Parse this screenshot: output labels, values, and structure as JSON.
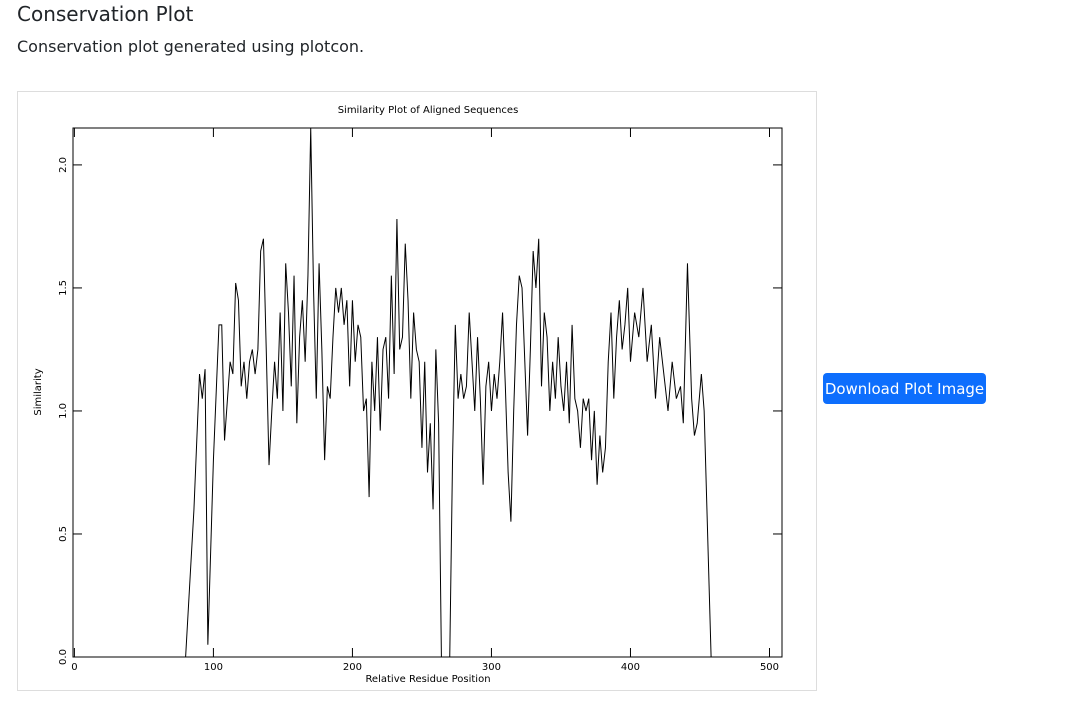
{
  "header": {
    "title": "Conservation Plot",
    "description": "Conservation plot generated using plotcon."
  },
  "button": {
    "label": "Download Plot Image"
  },
  "chart_data": {
    "type": "line",
    "title": "Similarity Plot of Aligned Sequences",
    "x_label": "Relative Residue Position",
    "y_label": "Similarity",
    "color": "#000000",
    "xlim": [
      -1,
      509
    ],
    "ylim": [
      0,
      2.15
    ],
    "xticks": [
      0,
      100,
      200,
      300,
      400,
      500
    ],
    "yticks": [
      {
        "value": 0,
        "label": "0.0"
      },
      0.5,
      {
        "value": 1,
        "label": "1.0"
      },
      1.5,
      {
        "value": 2,
        "label": "2.0"
      }
    ],
    "x": [
      0,
      78,
      80,
      86,
      90,
      92,
      94,
      96,
      100,
      104,
      106,
      108,
      112,
      114,
      116,
      118,
      120,
      122,
      124,
      126,
      128,
      130,
      132,
      134,
      136,
      138,
      140,
      142,
      144,
      146,
      148,
      150,
      152,
      154,
      156,
      158,
      160,
      162,
      164,
      166,
      168,
      170,
      172,
      174,
      176,
      178,
      180,
      182,
      184,
      186,
      188,
      190,
      192,
      194,
      196,
      198,
      200,
      202,
      204,
      206,
      208,
      210,
      212,
      214,
      216,
      218,
      220,
      222,
      224,
      226,
      228,
      230,
      232,
      234,
      236,
      238,
      240,
      242,
      244,
      246,
      248,
      250,
      252,
      254,
      256,
      258,
      260,
      262,
      264,
      270,
      272,
      274,
      276,
      278,
      280,
      282,
      284,
      286,
      288,
      290,
      292,
      294,
      296,
      298,
      300,
      302,
      304,
      306,
      308,
      310,
      312,
      314,
      316,
      318,
      320,
      322,
      324,
      326,
      328,
      330,
      332,
      334,
      336,
      338,
      340,
      342,
      344,
      346,
      348,
      350,
      352,
      354,
      356,
      358,
      360,
      362,
      364,
      366,
      368,
      370,
      372,
      374,
      376,
      378,
      380,
      382,
      384,
      386,
      388,
      390,
      392,
      394,
      396,
      398,
      400,
      403,
      406,
      409,
      412,
      415,
      418,
      421,
      424,
      427,
      430,
      433,
      436,
      438,
      441,
      444,
      446,
      448,
      451,
      453,
      458,
      460
    ],
    "values": [
      0,
      0,
      0,
      0.6,
      1.15,
      1.05,
      1.17,
      0.05,
      0.8,
      1.35,
      1.35,
      0.88,
      1.2,
      1.15,
      1.52,
      1.45,
      1.1,
      1.2,
      1.05,
      1.2,
      1.25,
      1.15,
      1.25,
      1.65,
      1.7,
      1.25,
      0.78,
      1.0,
      1.2,
      1.05,
      1.4,
      1.0,
      1.6,
      1.4,
      1.1,
      1.55,
      0.95,
      1.3,
      1.45,
      1.2,
      1.55,
      2.15,
      1.5,
      1.05,
      1.6,
      1.25,
      0.8,
      1.1,
      1.05,
      1.3,
      1.5,
      1.4,
      1.5,
      1.35,
      1.45,
      1.1,
      1.45,
      1.2,
      1.35,
      1.3,
      1.0,
      1.05,
      0.65,
      1.2,
      1.0,
      1.3,
      0.92,
      1.25,
      1.3,
      1.05,
      1.55,
      1.15,
      1.78,
      1.25,
      1.3,
      1.68,
      1.45,
      1.05,
      1.4,
      1.25,
      1.2,
      0.85,
      1.2,
      0.75,
      0.95,
      0.6,
      1.25,
      0.95,
      0,
      0,
      0.8,
      1.35,
      1.05,
      1.15,
      1.05,
      1.1,
      1.4,
      1.2,
      1.0,
      1.3,
      1.05,
      0.7,
      1.1,
      1.2,
      1.0,
      1.15,
      1.05,
      1.2,
      1.4,
      1.1,
      0.75,
      0.55,
      1.0,
      1.35,
      1.55,
      1.5,
      1.2,
      0.9,
      1.25,
      1.65,
      1.5,
      1.7,
      1.1,
      1.4,
      1.3,
      1.0,
      1.2,
      1.05,
      1.3,
      1.1,
      1.0,
      1.2,
      0.95,
      1.35,
      1.05,
      1.0,
      0.85,
      1.05,
      1.0,
      1.05,
      0.8,
      1.0,
      0.7,
      0.9,
      0.75,
      0.85,
      1.2,
      1.4,
      1.05,
      1.3,
      1.45,
      1.25,
      1.35,
      1.5,
      1.2,
      1.4,
      1.3,
      1.5,
      1.2,
      1.35,
      1.05,
      1.3,
      1.15,
      1.0,
      1.2,
      1.05,
      1.1,
      0.95,
      1.6,
      1.05,
      0.9,
      0.95,
      1.15,
      1.0,
      0,
      0
    ]
  }
}
